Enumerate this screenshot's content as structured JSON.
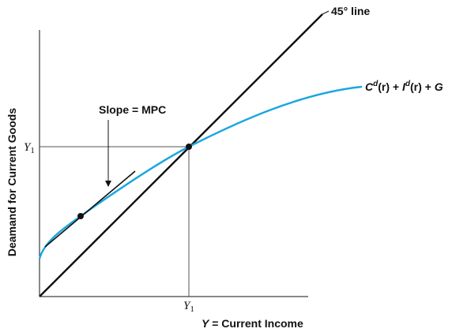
{
  "chart_data": {
    "type": "line",
    "title": "",
    "xlabel": {
      "var": "Y",
      "text": " = Current Income"
    },
    "ylabel": "Deamand for Current Goods",
    "grid": false,
    "legend": "none",
    "series": [
      {
        "name": "45° line",
        "kind": "line",
        "color": "#111111"
      },
      {
        "name": "Cd(r) + Id(r) + G",
        "kind": "curve",
        "color": "#1aa6df",
        "label_parts": {
          "c": "C",
          "d1": "d",
          "r1": "(r) + ",
          "i": "I",
          "d2": "d",
          "r2": "(r) + ",
          "g": "G"
        }
      }
    ],
    "annotations": {
      "slope": "Slope = MPC",
      "y1_x": {
        "var": "Y",
        "sub": "1"
      },
      "y1_y": {
        "var": "Y",
        "sub": "1"
      }
    },
    "colors": {
      "axis": "#111111",
      "curve": "#1aa6df",
      "guide": "#555555"
    }
  }
}
